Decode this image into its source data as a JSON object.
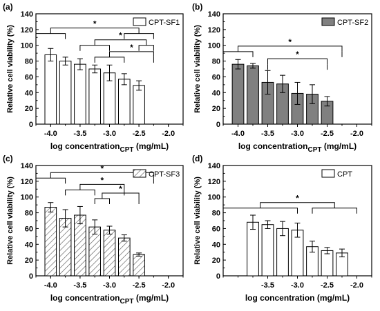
{
  "figure": {
    "panels": [
      "(a)",
      "(b)",
      "(c)",
      "(d)"
    ]
  },
  "chart_data": [
    {
      "type": "bar",
      "panel_label": "(a)",
      "legend": "CPT-SF1",
      "legend_style": "open",
      "xlabel": "log concentration",
      "xlabel_sub": "CPT",
      "xlabel_unit": " (mg/mL)",
      "ylabel": "Relative cell viability (%)",
      "ylim": [
        0,
        140
      ],
      "yticks": [
        "0",
        "20",
        "40",
        "60",
        "80",
        "100",
        "120",
        "140"
      ],
      "xticks": [
        "-4.0",
        "-3.5",
        "-3.0",
        "-2.5",
        "-2.0"
      ],
      "x": [
        -4.0,
        -3.75,
        -3.5,
        -3.25,
        -3.0,
        -2.75,
        -2.5,
        -2.25,
        -2.0
      ],
      "xlim": [
        -4.25,
        -1.75
      ],
      "bar_color": "#ffffff",
      "bar_hatch": false,
      "values": [
        {
          "x": -4.0,
          "value": 88,
          "error": 8
        },
        {
          "x": -3.75,
          "value": 80,
          "error": 5
        },
        {
          "x": -3.5,
          "value": 76,
          "error": 7
        },
        {
          "x": -3.25,
          "value": 70,
          "error": 5
        },
        {
          "x": -3.0,
          "value": 65,
          "error": 10
        },
        {
          "x": -2.75,
          "value": 57,
          "error": 7
        },
        {
          "x": -2.5,
          "value": 49,
          "error": 6
        }
      ],
      "significance": [
        {
          "from": [
            -4.25,
            -3.75
          ],
          "to": [
            -2.75,
            -2.25
          ],
          "level": 115,
          "label": "*"
        },
        {
          "from": [
            -3.5,
            -3.0
          ],
          "to": [
            -2.5,
            -2.25
          ],
          "level": 100,
          "label": "*"
        },
        {
          "from": [
            -3.25,
            -2.75
          ],
          "to": [
            -2.25
          ],
          "level": 85,
          "label": "*"
        }
      ]
    },
    {
      "type": "bar",
      "panel_label": "(b)",
      "legend": "CPT-SF2",
      "legend_style": "gray",
      "xlabel": "log concentration",
      "xlabel_sub": "CPT",
      "xlabel_unit": " (mg/mL)",
      "ylabel": "Relative cell viability (%)",
      "ylim": [
        0,
        140
      ],
      "yticks": [
        "0",
        "20",
        "40",
        "60",
        "80",
        "100",
        "120",
        "140"
      ],
      "xticks": [
        "-4.0",
        "-3.5",
        "-3.0",
        "-2.5",
        "-2.0"
      ],
      "xlim": [
        -4.25,
        -1.75
      ],
      "bar_color": "#808080",
      "bar_hatch": false,
      "values": [
        {
          "x": -4.0,
          "value": 76,
          "error": 6
        },
        {
          "x": -3.75,
          "value": 74,
          "error": 3
        },
        {
          "x": -3.5,
          "value": 53,
          "error": 15
        },
        {
          "x": -3.25,
          "value": 51,
          "error": 11
        },
        {
          "x": -3.0,
          "value": 39,
          "error": 14
        },
        {
          "x": -2.75,
          "value": 38,
          "error": 12
        },
        {
          "x": -2.5,
          "value": 29,
          "error": 6
        }
      ],
      "significance": [
        {
          "from": [
            -4.25,
            -3.75
          ],
          "to": [
            -2.25
          ],
          "level": 92,
          "label": "*"
        },
        {
          "from": [
            -3.5
          ],
          "to": [
            -2.5
          ],
          "level": 76,
          "label": "*"
        }
      ]
    },
    {
      "type": "bar",
      "panel_label": "(c)",
      "legend": "CPT-SF3",
      "legend_style": "hatch",
      "xlabel": "log concentration",
      "xlabel_sub": "CPT",
      "xlabel_unit": " (mg/mL)",
      "ylabel": "Relative cell viability (%)",
      "ylim": [
        0,
        140
      ],
      "yticks": [
        "0",
        "20",
        "40",
        "60",
        "80",
        "100",
        "120",
        "140"
      ],
      "xticks": [
        "-4.0",
        "-3.5",
        "-3.0",
        "-2.5",
        "-2.0"
      ],
      "xlim": [
        -4.25,
        -1.75
      ],
      "bar_color": "#ffffff",
      "bar_hatch": true,
      "values": [
        {
          "x": -4.0,
          "value": 87,
          "error": 6
        },
        {
          "x": -3.75,
          "value": 73,
          "error": 11
        },
        {
          "x": -3.5,
          "value": 77,
          "error": 11
        },
        {
          "x": -3.25,
          "value": 62,
          "error": 9
        },
        {
          "x": -3.0,
          "value": 58,
          "error": 5
        },
        {
          "x": -2.75,
          "value": 48,
          "error": 4
        },
        {
          "x": -2.5,
          "value": 27,
          "error": 2
        }
      ],
      "significance": [
        {
          "from": [
            -4.25,
            -3.75
          ],
          "to": [
            -2.25
          ],
          "level": 124,
          "label": "*"
        },
        {
          "from": [
            -3.75,
            -3.25
          ],
          "to": [
            -2.75
          ],
          "level": 109,
          "label": "*"
        },
        {
          "from": [
            -3.25,
            -3.0
          ],
          "to": [
            -2.5
          ],
          "level": 98,
          "label": "*"
        }
      ]
    },
    {
      "type": "bar",
      "panel_label": "(d)",
      "legend": "CPT",
      "legend_style": "open",
      "xlabel": "log concentration (mg/mL)",
      "xlabel_sub": "",
      "xlabel_unit": "",
      "ylabel": "Relative cell viability (%)",
      "ylim": [
        0,
        140
      ],
      "yticks": [
        "0",
        "20",
        "40",
        "60",
        "80",
        "100",
        "120",
        "140"
      ],
      "xticks": [
        "-3.5",
        "-3.0",
        "-2.5",
        "-2.0"
      ],
      "xlim": [
        -4.25,
        -1.75
      ],
      "bar_color": "#ffffff",
      "bar_hatch": false,
      "values": [
        {
          "x": -3.75,
          "value": 68,
          "error": 9
        },
        {
          "x": -3.5,
          "value": 65,
          "error": 5
        },
        {
          "x": -3.25,
          "value": 60,
          "error": 9
        },
        {
          "x": -3.0,
          "value": 58,
          "error": 9
        },
        {
          "x": -2.75,
          "value": 37,
          "error": 7
        },
        {
          "x": -2.5,
          "value": 32,
          "error": 4
        },
        {
          "x": -2.25,
          "value": 29,
          "error": 5
        }
      ],
      "significance": [
        {
          "from": [
            -4.25,
            -3.0
          ],
          "to": [
            -2.75,
            -2.0
          ],
          "level": 86,
          "label": "*"
        }
      ]
    }
  ]
}
